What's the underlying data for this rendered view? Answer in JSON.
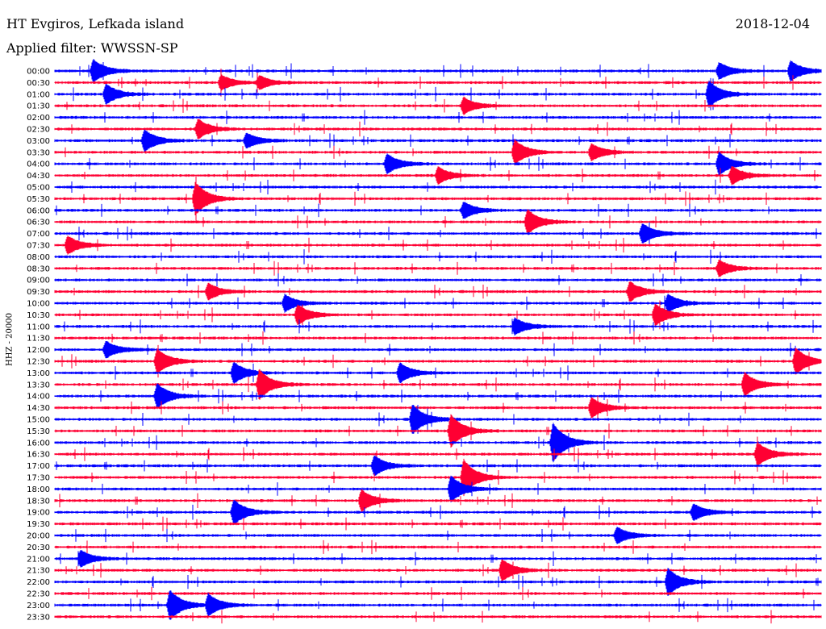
{
  "header": {
    "station": "HT Evgiros, Lefkada island",
    "date": "2018-12-04",
    "filter": "Applied filter: WWSSN-SP",
    "channel_label": "HHZ - 20000"
  },
  "colors": {
    "even_trace": "#0000ff",
    "odd_trace": "#ff0033",
    "background": "#ffffff",
    "text": "#000000"
  },
  "chart_data": {
    "type": "line",
    "title": "HT Evgiros, Lefkada island",
    "ylabel": "HHZ - 20000",
    "xlabel": "",
    "grid": false,
    "row_labels": [
      "00:00",
      "00:30",
      "01:00",
      "01:30",
      "02:00",
      "02:30",
      "03:00",
      "03:30",
      "04:00",
      "04:30",
      "05:00",
      "05:30",
      "06:00",
      "06:30",
      "07:00",
      "07:30",
      "08:00",
      "08:30",
      "09:00",
      "09:30",
      "10:00",
      "10:30",
      "11:00",
      "11:30",
      "12:00",
      "12:30",
      "13:00",
      "13:30",
      "14:00",
      "14:30",
      "15:00",
      "15:30",
      "16:00",
      "16:30",
      "17:00",
      "17:30",
      "18:00",
      "18:30",
      "19:00",
      "19:30",
      "20:00",
      "20:30",
      "21:00",
      "21:30",
      "22:00",
      "22:30",
      "23:00",
      "23:30"
    ],
    "trace_colors": [
      "#0000ff",
      "#ff0033"
    ],
    "events": [
      {
        "row": 0,
        "minute": 1.5,
        "amplitude": 1.4
      },
      {
        "row": 0,
        "minute": 26.0,
        "amplitude": 1.0
      },
      {
        "row": 0,
        "minute": 28.8,
        "amplitude": 1.2
      },
      {
        "row": 1,
        "minute": 6.5,
        "amplitude": 0.9
      },
      {
        "row": 1,
        "minute": 8.0,
        "amplitude": 0.8
      },
      {
        "row": 2,
        "minute": 2.0,
        "amplitude": 1.2
      },
      {
        "row": 2,
        "minute": 25.6,
        "amplitude": 1.6
      },
      {
        "row": 3,
        "minute": 16.0,
        "amplitude": 1.0
      },
      {
        "row": 5,
        "minute": 5.6,
        "amplitude": 1.2
      },
      {
        "row": 6,
        "minute": 3.5,
        "amplitude": 1.3
      },
      {
        "row": 6,
        "minute": 7.5,
        "amplitude": 0.9
      },
      {
        "row": 7,
        "minute": 18.0,
        "amplitude": 1.5
      },
      {
        "row": 7,
        "minute": 21.0,
        "amplitude": 1.0
      },
      {
        "row": 8,
        "minute": 13.0,
        "amplitude": 1.2
      },
      {
        "row": 8,
        "minute": 26.0,
        "amplitude": 1.4
      },
      {
        "row": 9,
        "minute": 15.0,
        "amplitude": 1.0
      },
      {
        "row": 9,
        "minute": 26.5,
        "amplitude": 1.1
      },
      {
        "row": 11,
        "minute": 5.5,
        "amplitude": 2.0
      },
      {
        "row": 12,
        "minute": 16.0,
        "amplitude": 1.0
      },
      {
        "row": 13,
        "minute": 18.5,
        "amplitude": 1.5
      },
      {
        "row": 14,
        "minute": 23.0,
        "amplitude": 1.2
      },
      {
        "row": 15,
        "minute": 0.5,
        "amplitude": 1.1
      },
      {
        "row": 17,
        "minute": 26.0,
        "amplitude": 1.0
      },
      {
        "row": 19,
        "minute": 6.0,
        "amplitude": 1.0
      },
      {
        "row": 19,
        "minute": 22.5,
        "amplitude": 1.2
      },
      {
        "row": 20,
        "minute": 9.0,
        "amplitude": 1.0
      },
      {
        "row": 20,
        "minute": 24.0,
        "amplitude": 1.1
      },
      {
        "row": 21,
        "minute": 9.5,
        "amplitude": 1.2
      },
      {
        "row": 21,
        "minute": 23.5,
        "amplitude": 1.3
      },
      {
        "row": 22,
        "minute": 18.0,
        "amplitude": 1.0
      },
      {
        "row": 24,
        "minute": 2.0,
        "amplitude": 1.0
      },
      {
        "row": 25,
        "minute": 4.0,
        "amplitude": 1.5
      },
      {
        "row": 25,
        "minute": 29.0,
        "amplitude": 1.6
      },
      {
        "row": 26,
        "minute": 7.0,
        "amplitude": 1.3
      },
      {
        "row": 26,
        "minute": 13.5,
        "amplitude": 1.2
      },
      {
        "row": 27,
        "minute": 8.0,
        "amplitude": 1.8
      },
      {
        "row": 27,
        "minute": 27.0,
        "amplitude": 1.4
      },
      {
        "row": 28,
        "minute": 4.0,
        "amplitude": 1.5
      },
      {
        "row": 29,
        "minute": 21.0,
        "amplitude": 1.2
      },
      {
        "row": 30,
        "minute": 14.0,
        "amplitude": 1.8
      },
      {
        "row": 31,
        "minute": 15.5,
        "amplitude": 2.0
      },
      {
        "row": 32,
        "minute": 19.5,
        "amplitude": 2.4
      },
      {
        "row": 33,
        "minute": 27.5,
        "amplitude": 1.4
      },
      {
        "row": 34,
        "minute": 12.5,
        "amplitude": 1.2
      },
      {
        "row": 35,
        "minute": 16.0,
        "amplitude": 2.2
      },
      {
        "row": 36,
        "minute": 15.5,
        "amplitude": 1.6
      },
      {
        "row": 37,
        "minute": 12.0,
        "amplitude": 1.3
      },
      {
        "row": 38,
        "minute": 7.0,
        "amplitude": 1.5
      },
      {
        "row": 38,
        "minute": 25.0,
        "amplitude": 1.0
      },
      {
        "row": 40,
        "minute": 22.0,
        "amplitude": 1.0
      },
      {
        "row": 42,
        "minute": 1.0,
        "amplitude": 1.0
      },
      {
        "row": 43,
        "minute": 17.5,
        "amplitude": 1.3
      },
      {
        "row": 44,
        "minute": 24.0,
        "amplitude": 1.6
      },
      {
        "row": 46,
        "minute": 4.5,
        "amplitude": 1.8
      },
      {
        "row": 46,
        "minute": 6.0,
        "amplitude": 1.3
      }
    ]
  }
}
